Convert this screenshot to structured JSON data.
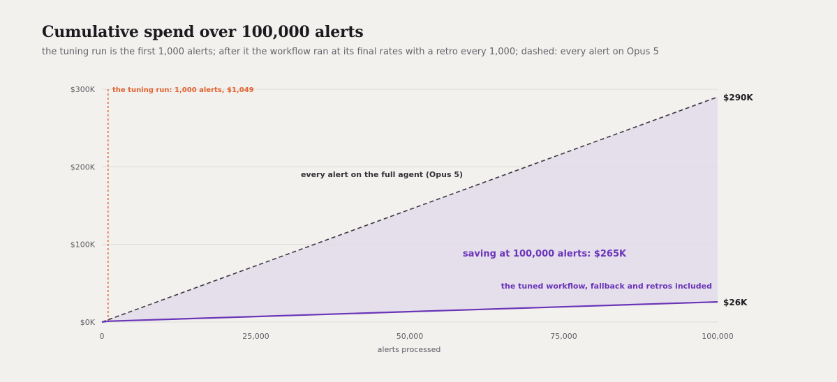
{
  "chart_data": {
    "type": "line",
    "title": "Cumulative spend over 100,000 alerts",
    "subtitle": "the tuning run is the first 1,000 alerts; after it the workflow ran at its final rates with a retro every 1,000; dashed: every alert on Opus 5",
    "xlabel": "alerts processed",
    "ylabel": "",
    "xlim": [
      0,
      100000
    ],
    "ylim": [
      0,
      300000
    ],
    "x_ticks": [
      0,
      25000,
      50000,
      75000,
      100000
    ],
    "x_tick_labels": [
      "0",
      "25,000",
      "50,000",
      "75,000",
      "100,000"
    ],
    "y_ticks": [
      0,
      100000,
      200000,
      300000
    ],
    "y_tick_labels": [
      "$0K",
      "$100K",
      "$200K",
      "$300K"
    ],
    "grid": "horizontal",
    "legend": "none",
    "series": [
      {
        "name": "every alert on the full agent (Opus 5)",
        "style": "dashed",
        "color": "#3a3640",
        "x": [
          0,
          100000
        ],
        "y": [
          0,
          290000
        ],
        "end_label": "$290K"
      },
      {
        "name": "the tuned workflow, fallback and retros included",
        "style": "solid",
        "color": "#6a35b8",
        "x": [
          0,
          1000,
          100000
        ],
        "y": [
          0,
          1049,
          26000
        ],
        "end_label": "$26K"
      }
    ],
    "shaded_gap": {
      "color": "#e3dcea",
      "between": [
        "every alert on the full agent (Opus 5)",
        "the tuned workflow, fallback and retros included"
      ]
    },
    "annotations": [
      {
        "kind": "vertical_line",
        "x": 1000,
        "color": "#e3632f",
        "text": "the tuning run: 1,000 alerts, $1,049"
      },
      {
        "kind": "text",
        "text": "saving at 100,000 alerts: $265K",
        "color": "#6a35b8"
      }
    ]
  }
}
